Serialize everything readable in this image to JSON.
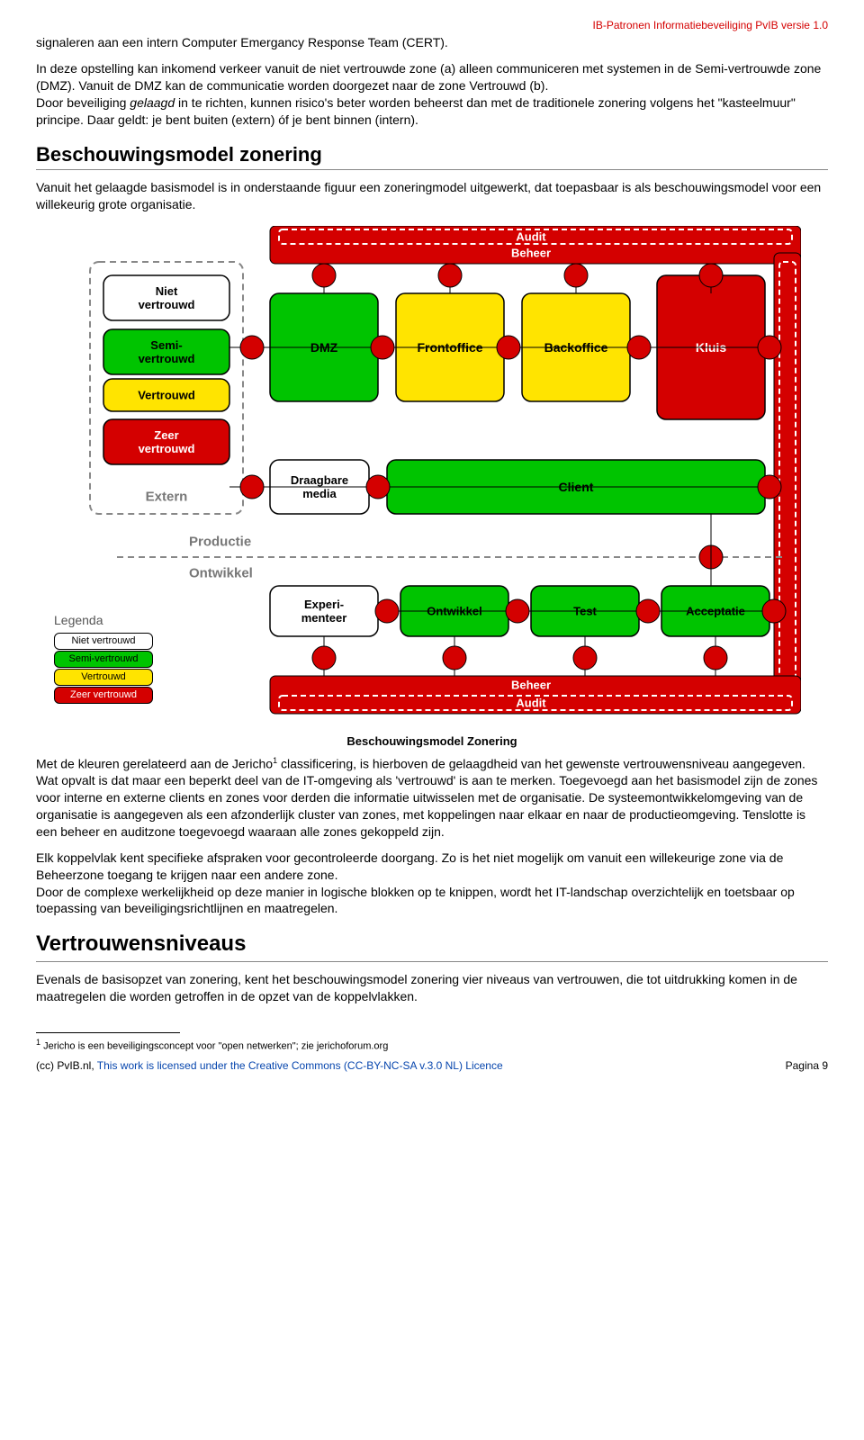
{
  "header": {
    "right": "IB-Patronen Informatiebeveiliging PvIB versie 1.0"
  },
  "para1": "signaleren aan een intern Computer Emergancy Response Team (CERT).",
  "para2a": "In deze opstelling kan inkomend verkeer vanuit de niet vertrouwde zone (a) alleen communiceren met systemen in de Semi-vertrouwde zone (DMZ). Vanuit de DMZ kan de communicatie worden doorgezet naar de zone Vertrouwd (b).",
  "para2b_pre": "Door beveiliging ",
  "para2b_em": "gelaagd",
  "para2b_post": " in te richten, kunnen risico's beter worden beheerst dan met de traditionele zonering volgens het \"kasteelmuur\" principe. Daar geldt: je bent buiten (extern) óf je bent binnen (intern).",
  "heading1": "Beschouwingsmodel zonering",
  "para3": "Vanuit het gelaagde basismodel is in onderstaande figuur een zoneringmodel uitgewerkt, dat toepasbaar is als beschouwingsmodel voor een willekeurig grote organisatie.",
  "diagram": {
    "dashedLeft": {
      "extern_label": "Extern"
    },
    "topband": {
      "audit": "Audit",
      "beheer": "Beheer"
    },
    "bottomband": {
      "beheer": "Beheer",
      "audit": "Audit"
    },
    "trustBoxes": [
      {
        "label": "Niet\nvertrouwd",
        "bg": "#ffffff",
        "text": "#000000"
      },
      {
        "label": "Semi-\nvertrouwd",
        "bg": "#00c400",
        "text": "#000000"
      },
      {
        "label": "Vertrouwd",
        "bg": "#ffe400",
        "text": "#000000"
      },
      {
        "label": "Zeer\nvertrouwd",
        "bg": "#d40000",
        "text": "#ffffff"
      }
    ],
    "mainBoxes": [
      {
        "label": "DMZ",
        "bg": "#00c400"
      },
      {
        "label": "Frontoffice",
        "bg": "#ffe400"
      },
      {
        "label": "Backoffice",
        "bg": "#ffe400"
      },
      {
        "label": "Kluis",
        "bg": "#d40000",
        "text": "#ffffff"
      }
    ],
    "clientRow": {
      "draagbare": "Draagbare\nmedia",
      "client": "Client"
    },
    "prodOntwikkel": {
      "productie": "Productie",
      "ontwikkel": "Ontwikkel"
    },
    "devBoxes": [
      {
        "label": "Experi-\nmenteer",
        "bg": "#ffffff"
      },
      {
        "label": "Ontwikkel",
        "bg": "#00c400"
      },
      {
        "label": "Test",
        "bg": "#00c400"
      },
      {
        "label": "Acceptatie",
        "bg": "#00c400"
      }
    ],
    "connectorColor": "#d40000",
    "caption": "Beschouwingsmodel Zonering"
  },
  "legend": {
    "title": "Legenda",
    "items": [
      {
        "label": "Niet vertrouwd",
        "bg": "#ffffff",
        "text": "#000000"
      },
      {
        "label": "Semi-vertrouwd",
        "bg": "#00c400",
        "text": "#000000"
      },
      {
        "label": "Vertrouwd",
        "bg": "#ffe400",
        "text": "#000000"
      },
      {
        "label": "Zeer vertrouwd",
        "bg": "#d40000",
        "text": "#ffffff"
      }
    ]
  },
  "para4a": "Met de kleuren gerelateerd aan de Jericho",
  "para4sup": "1",
  "para4b": " classificering, is hierboven de gelaagdheid van het gewenste vertrouwensniveau aangegeven. Wat opvalt is dat maar een beperkt deel van de IT-omgeving als 'vertrouwd' is aan te merken. Toegevoegd aan het basismodel zijn de zones voor interne en externe clients en zones voor derden die informatie uitwisselen met de organisatie. De systeemontwikkelomgeving van de organisatie is aangegeven als een afzonderlijk cluster van zones, met koppelingen naar elkaar en naar de productieomgeving. Tenslotte is een beheer en auditzone toegevoegd waaraan alle zones gekoppeld zijn.",
  "para5": "Elk koppelvlak kent specifieke afspraken voor gecontroleerde doorgang. Zo is het niet mogelijk om vanuit een willekeurige zone via de Beheerzone toegang te krijgen naar een andere zone.",
  "para6": "Door de complexe werkelijkheid op deze manier in logische blokken op te knippen, wordt het IT-landschap overzichtelijk en toetsbaar op toepassing van beveiligingsrichtlijnen en maatregelen.",
  "heading2": "Vertrouwensniveaus",
  "para7": "Evenals de basisopzet van zonering, kent het beschouwingsmodel zonering vier niveaus van vertrouwen, die tot uitdrukking komen in de maatregelen die worden getroffen in de opzet van de koppelvlakken.",
  "footnote": {
    "num": "1",
    "text": " Jericho is een beveiligingsconcept voor \"open netwerken\"; zie jerichoforum.org"
  },
  "footer": {
    "left_pre": "(cc) PvIB.nl, ",
    "left_link": "This work is licensed under the Creative Commons (CC-BY-NC-SA  v.3.0 NL) Licence",
    "right": "Pagina 9"
  }
}
